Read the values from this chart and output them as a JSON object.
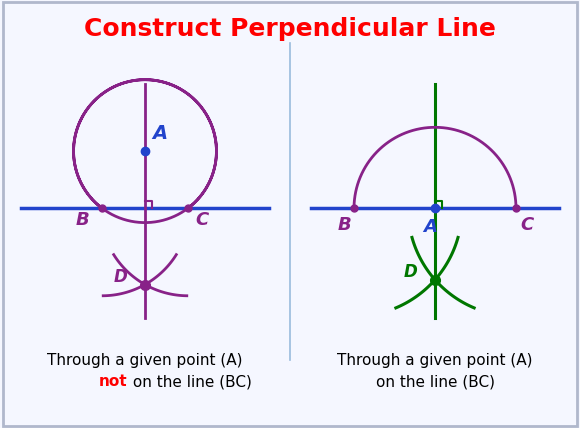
{
  "title": "Construct Perpendicular Line",
  "title_color": "#FF0000",
  "title_fontsize": 18,
  "background_color": "#F5F7FF",
  "border_color": "#B0B8CC",
  "divider_color": "#99BBDD",
  "left_caption_line1": "Through a given point (A)",
  "left_caption_line2_post": " on the line (BC)",
  "right_caption_line1": "Through a given point (A)",
  "right_caption_line2": "on the line (BC)",
  "caption_fontsize": 11,
  "blue_color": "#2244CC",
  "purple_color": "#882288",
  "green_color": "#007700",
  "label_color_blue": "#2244CC",
  "label_color_purple": "#882288",
  "label_color_green": "#007700"
}
